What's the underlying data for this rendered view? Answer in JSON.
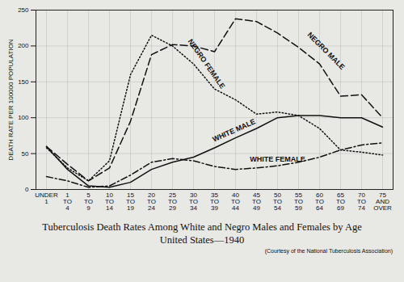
{
  "chart_data": {
    "type": "line",
    "title": "Tuberculosis Death Rates Among White and Negro Males and Females by Age",
    "subtitle": "United States—1940",
    "note": "(Courtesy of the National Tuberculosis Association)",
    "y_label": "DEATH RATE PER 100000 POPULATION",
    "categories": [
      "UNDER 1",
      "1 TO 4",
      "5 TO 9",
      "10 TO 14",
      "15 TO 19",
      "20 TO 24",
      "25 TO 29",
      "30 TO 34",
      "35 TO 39",
      "40 TO 44",
      "45 TO 49",
      "50 TO 54",
      "55 TO 59",
      "60 TO 64",
      "65 TO 69",
      "70 TO 74",
      "75 AND OVER"
    ],
    "series": [
      {
        "name": "NEGRO MALE",
        "color": "#111111",
        "line_style": "dashed",
        "values": [
          60,
          35,
          12,
          30,
          95,
          188,
          202,
          200,
          192,
          238,
          234,
          218,
          198,
          175,
          130,
          132,
          100
        ]
      },
      {
        "name": "NEGRO FEMALE",
        "color": "#111111",
        "line_style": "dotted",
        "values": [
          58,
          30,
          12,
          40,
          160,
          215,
          200,
          175,
          140,
          125,
          105,
          108,
          103,
          85,
          55,
          52,
          48
        ]
      },
      {
        "name": "WHITE MALE",
        "color": "#111111",
        "line_style": "solid",
        "values": [
          60,
          28,
          5,
          3,
          10,
          28,
          38,
          45,
          58,
          72,
          85,
          100,
          103,
          103,
          100,
          100,
          87
        ]
      },
      {
        "name": "WHITE FEMALE",
        "color": "#111111",
        "line_style": "dashdot",
        "values": [
          18,
          12,
          3,
          5,
          20,
          38,
          43,
          40,
          32,
          28,
          30,
          33,
          38,
          45,
          55,
          62,
          65
        ]
      }
    ],
    "ylim": [
      0,
      250
    ],
    "yticks": [
      0,
      50,
      100,
      150,
      200,
      250
    ],
    "grid": true
  }
}
